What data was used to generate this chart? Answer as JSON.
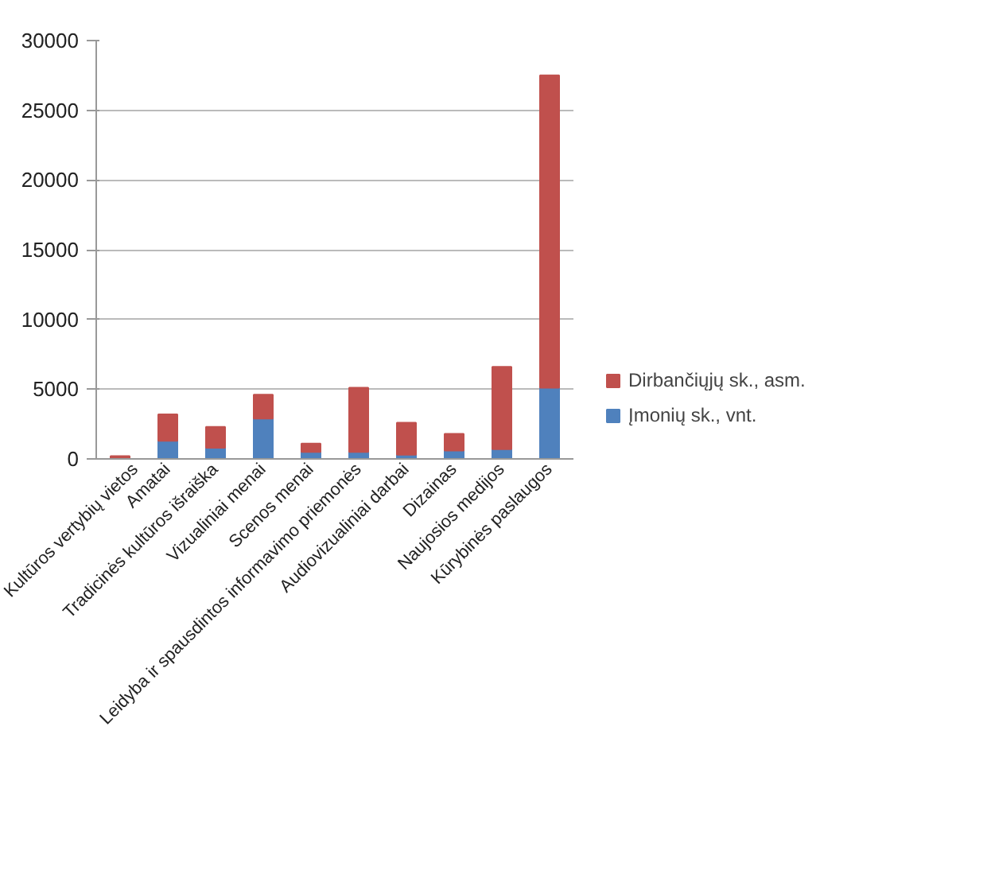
{
  "chart_data": {
    "type": "bar",
    "stacked": true,
    "categories": [
      "Kultūros vertybių vietos",
      "Amatai",
      "Tradicinės kultūros išraiška",
      "Vizualiniai menai",
      "Scenos menai",
      "Leidyba ir spausdintos informavimo priemonės",
      "Audiovizualiniai darbai",
      "Dizainas",
      "Naujosios medijos",
      "Kūrybinės paslaugos"
    ],
    "series": [
      {
        "name": "Įmonių sk., vnt.",
        "color": "#4f81bd",
        "values": [
          0,
          1300,
          800,
          2900,
          500,
          500,
          300,
          600,
          700,
          5100
        ]
      },
      {
        "name": "Dirbančiųjų sk., asm.",
        "color": "#c0504d",
        "values": [
          200,
          1900,
          1500,
          1700,
          600,
          4600,
          2300,
          1200,
          5900,
          22400
        ]
      }
    ],
    "ylim": [
      0,
      30000
    ],
    "yticks": [
      0,
      5000,
      10000,
      15000,
      20000,
      25000,
      30000
    ],
    "grid": "y",
    "legend": "right"
  }
}
